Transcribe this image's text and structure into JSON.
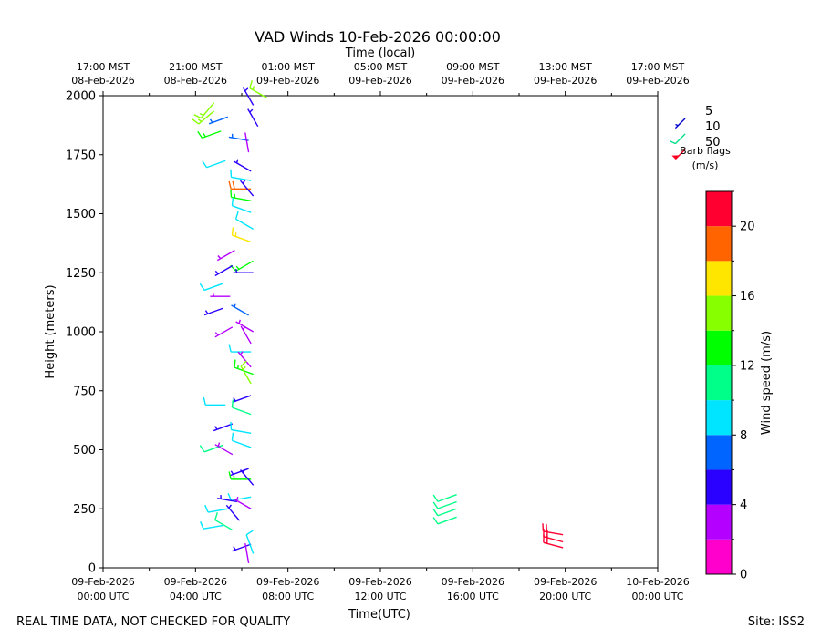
{
  "chart_data": {
    "type": "scatter",
    "title": "VAD Winds 10-Feb-2026 00:00:00",
    "top_axis_label": "Time (local)",
    "xlabel": "Time(UTC)",
    "ylabel": "Height (meters)",
    "footer_left": "REAL TIME DATA, NOT CHECKED FOR QUALITY",
    "footer_right": "Site: ISS2",
    "xlim": [
      0,
      24
    ],
    "ylim": [
      0,
      2000
    ],
    "y_ticks": [
      0,
      250,
      500,
      750,
      1000,
      1250,
      1500,
      1750,
      2000
    ],
    "x_ticks_bottom": [
      {
        "x": 0,
        "line1": "09-Feb-2026",
        "line2": "00:00 UTC"
      },
      {
        "x": 4,
        "line1": "09-Feb-2026",
        "line2": "04:00 UTC"
      },
      {
        "x": 8,
        "line1": "09-Feb-2026",
        "line2": "08:00 UTC"
      },
      {
        "x": 12,
        "line1": "09-Feb-2026",
        "line2": "12:00 UTC"
      },
      {
        "x": 16,
        "line1": "09-Feb-2026",
        "line2": "16:00 UTC"
      },
      {
        "x": 20,
        "line1": "09-Feb-2026",
        "line2": "20:00 UTC"
      },
      {
        "x": 24,
        "line1": "10-Feb-2026",
        "line2": "00:00 UTC"
      }
    ],
    "x_ticks_top": [
      {
        "x": 0,
        "line1": "17:00 MST",
        "line2": "08-Feb-2026"
      },
      {
        "x": 4,
        "line1": "21:00 MST",
        "line2": "08-Feb-2026"
      },
      {
        "x": 8,
        "line1": "01:00 MST",
        "line2": "09-Feb-2026"
      },
      {
        "x": 12,
        "line1": "05:00 MST",
        "line2": "09-Feb-2026"
      },
      {
        "x": 16,
        "line1": "09:00 MST",
        "line2": "09-Feb-2026"
      },
      {
        "x": 20,
        "line1": "13:00 MST",
        "line2": "09-Feb-2026"
      },
      {
        "x": 24,
        "line1": "17:00 MST",
        "line2": "09-Feb-2026"
      }
    ],
    "barb_legend": {
      "title_line1": "Barb flags",
      "title_line2": "(m/s)",
      "items": [
        {
          "label": "5",
          "color": "#0000cc"
        },
        {
          "label": "10",
          "color": "#00e08a"
        },
        {
          "label": "50",
          "color": "#ff0022"
        }
      ]
    },
    "colorbar": {
      "label": "Wind speed (m/s)",
      "min": 0,
      "max": 22,
      "ticks": [
        0,
        4,
        8,
        12,
        16,
        20
      ],
      "bins": [
        {
          "from": 0,
          "to": 2,
          "color": "#ff00cc"
        },
        {
          "from": 2,
          "to": 4,
          "color": "#b400ff"
        },
        {
          "from": 4,
          "to": 6,
          "color": "#2a00ff"
        },
        {
          "from": 6,
          "to": 8,
          "color": "#0064ff"
        },
        {
          "from": 8,
          "to": 10,
          "color": "#00e5ff"
        },
        {
          "from": 10,
          "to": 12,
          "color": "#00ff88"
        },
        {
          "from": 12,
          "to": 14,
          "color": "#00ff00"
        },
        {
          "from": 14,
          "to": 16,
          "color": "#88ff00"
        },
        {
          "from": 16,
          "to": 18,
          "color": "#ffe600"
        },
        {
          "from": 18,
          "to": 20,
          "color": "#ff6400"
        },
        {
          "from": 20,
          "to": 22,
          "color": "#ff0030"
        }
      ]
    },
    "barbs": [
      {
        "t": 7.1,
        "h": 1990,
        "dir": 300,
        "spd": 15
      },
      {
        "t": 4.8,
        "h": 1970,
        "dir": 220,
        "spd": 14
      },
      {
        "t": 4.8,
        "h": 1935,
        "dir": 230,
        "spd": 15
      },
      {
        "t": 6.5,
        "h": 1960,
        "dir": 330,
        "spd": 5
      },
      {
        "t": 5.4,
        "h": 1910,
        "dir": 250,
        "spd": 6
      },
      {
        "t": 6.7,
        "h": 1870,
        "dir": 330,
        "spd": 5
      },
      {
        "t": 5.1,
        "h": 1850,
        "dir": 250,
        "spd": 13
      },
      {
        "t": 6.3,
        "h": 1810,
        "dir": 280,
        "spd": 6
      },
      {
        "t": 6.3,
        "h": 1760,
        "dir": 350,
        "spd": 2
      },
      {
        "t": 5.3,
        "h": 1725,
        "dir": 250,
        "spd": 9
      },
      {
        "t": 6.4,
        "h": 1680,
        "dir": 300,
        "spd": 5
      },
      {
        "t": 6.4,
        "h": 1640,
        "dir": 280,
        "spd": 9
      },
      {
        "t": 6.4,
        "h": 1605,
        "dir": 270,
        "spd": 19
      },
      {
        "t": 6.5,
        "h": 1575,
        "dir": 320,
        "spd": 5
      },
      {
        "t": 6.4,
        "h": 1555,
        "dir": 280,
        "spd": 13
      },
      {
        "t": 6.4,
        "h": 1505,
        "dir": 290,
        "spd": 9
      },
      {
        "t": 6.5,
        "h": 1435,
        "dir": 300,
        "spd": 9
      },
      {
        "t": 5.7,
        "h": 1345,
        "dir": 240,
        "spd": 3
      },
      {
        "t": 6.4,
        "h": 1380,
        "dir": 290,
        "spd": 16
      },
      {
        "t": 6.5,
        "h": 1300,
        "dir": 240,
        "spd": 13
      },
      {
        "t": 5.6,
        "h": 1280,
        "dir": 240,
        "spd": 5
      },
      {
        "t": 6.5,
        "h": 1250,
        "dir": 270,
        "spd": 5
      },
      {
        "t": 5.2,
        "h": 1205,
        "dir": 250,
        "spd": 9
      },
      {
        "t": 5.5,
        "h": 1150,
        "dir": 270,
        "spd": 3
      },
      {
        "t": 5.2,
        "h": 1100,
        "dir": 250,
        "spd": 5
      },
      {
        "t": 6.3,
        "h": 1070,
        "dir": 300,
        "spd": 6
      },
      {
        "t": 5.6,
        "h": 1020,
        "dir": 240,
        "spd": 3
      },
      {
        "t": 6.5,
        "h": 1000,
        "dir": 300,
        "spd": 3
      },
      {
        "t": 6.4,
        "h": 950,
        "dir": 330,
        "spd": 3
      },
      {
        "t": 6.4,
        "h": 915,
        "dir": 270,
        "spd": 9
      },
      {
        "t": 6.4,
        "h": 850,
        "dir": 320,
        "spd": 3
      },
      {
        "t": 6.5,
        "h": 820,
        "dir": 290,
        "spd": 13
      },
      {
        "t": 6.4,
        "h": 780,
        "dir": 330,
        "spd": 14
      },
      {
        "t": 6.4,
        "h": 730,
        "dir": 250,
        "spd": 5
      },
      {
        "t": 5.3,
        "h": 690,
        "dir": 270,
        "spd": 9
      },
      {
        "t": 6.4,
        "h": 650,
        "dir": 290,
        "spd": 10
      },
      {
        "t": 5.6,
        "h": 610,
        "dir": 250,
        "spd": 5
      },
      {
        "t": 6.4,
        "h": 570,
        "dir": 280,
        "spd": 9
      },
      {
        "t": 5.2,
        "h": 520,
        "dir": 250,
        "spd": 10
      },
      {
        "t": 6.4,
        "h": 510,
        "dir": 290,
        "spd": 9
      },
      {
        "t": 5.6,
        "h": 480,
        "dir": 300,
        "spd": 3
      },
      {
        "t": 6.3,
        "h": 420,
        "dir": 250,
        "spd": 5
      },
      {
        "t": 6.4,
        "h": 375,
        "dir": 270,
        "spd": 13
      },
      {
        "t": 6.5,
        "h": 350,
        "dir": 320,
        "spd": 5
      },
      {
        "t": 6.4,
        "h": 300,
        "dir": 260,
        "spd": 9
      },
      {
        "t": 5.8,
        "h": 280,
        "dir": 280,
        "spd": 5
      },
      {
        "t": 5.4,
        "h": 250,
        "dir": 260,
        "spd": 9
      },
      {
        "t": 6.4,
        "h": 250,
        "dir": 300,
        "spd": 3
      },
      {
        "t": 5.9,
        "h": 200,
        "dir": 320,
        "spd": 5
      },
      {
        "t": 5.2,
        "h": 180,
        "dir": 260,
        "spd": 9
      },
      {
        "t": 5.6,
        "h": 160,
        "dir": 300,
        "spd": 10
      },
      {
        "t": 6.4,
        "h": 100,
        "dir": 250,
        "spd": 5
      },
      {
        "t": 6.5,
        "h": 60,
        "dir": 340,
        "spd": 9
      },
      {
        "t": 6.3,
        "h": 20,
        "dir": 350,
        "spd": 2
      },
      {
        "t": 15.3,
        "h": 310,
        "dir": 250,
        "spd": 11
      },
      {
        "t": 15.3,
        "h": 280,
        "dir": 250,
        "spd": 11
      },
      {
        "t": 15.3,
        "h": 250,
        "dir": 250,
        "spd": 11
      },
      {
        "t": 15.3,
        "h": 215,
        "dir": 250,
        "spd": 11
      },
      {
        "t": 19.9,
        "h": 140,
        "dir": 280,
        "spd": 21
      },
      {
        "t": 19.9,
        "h": 110,
        "dir": 285,
        "spd": 21
      },
      {
        "t": 19.9,
        "h": 85,
        "dir": 285,
        "spd": 21
      }
    ]
  }
}
